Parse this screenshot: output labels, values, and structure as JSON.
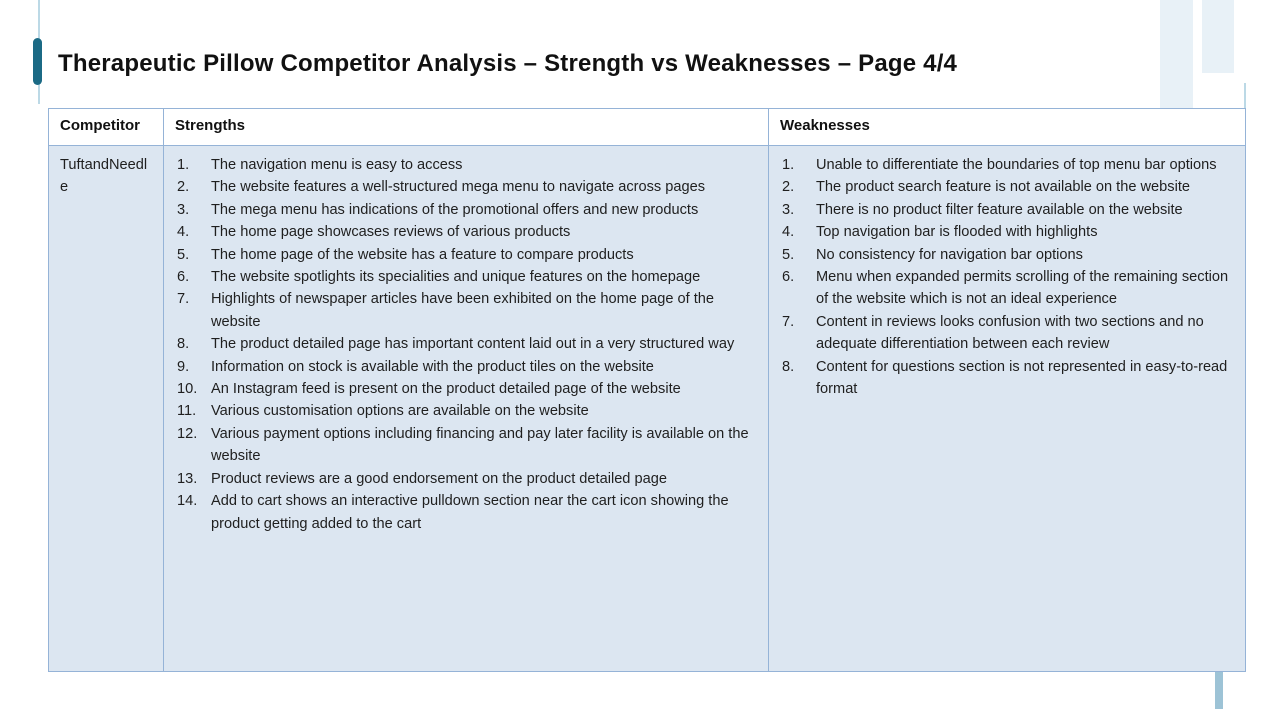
{
  "slide": {
    "title": "Therapeutic Pillow Competitor Analysis – Strength vs Weaknesses – Page 4/4"
  },
  "table": {
    "headers": {
      "competitor": "Competitor",
      "strengths": "Strengths",
      "weaknesses": "Weaknesses"
    },
    "row": {
      "competitor": "TuftandNeedle",
      "strengths": [
        "The navigation menu is easy to access",
        "The website features a well-structured mega menu to navigate across pages",
        "The mega menu has indications of the promotional offers and new products",
        "The home page showcases reviews of various products",
        "The home page of the website has a feature to compare products",
        "The website spotlights its specialities and unique features on the homepage",
        "Highlights of newspaper articles have been exhibited on the home page of the website",
        "The product detailed page has important content laid out in a very structured way",
        "Information on stock is available with the product tiles on the website",
        "An Instagram feed is present on the product detailed page of the website",
        "Various customisation options are available on the website",
        "Various payment options including financing and pay later facility is available on the website",
        "Product reviews are a good endorsement on the product detailed page",
        "Add to cart shows an interactive pulldown section near the cart icon showing the product getting added to the cart"
      ],
      "weaknesses": [
        "Unable to differentiate the boundaries of top menu bar options",
        "The product search feature is not available on the website",
        "There is no product filter feature available on the website",
        "Top navigation bar is flooded with highlights",
        "No consistency for navigation bar options",
        "Menu when expanded permits scrolling of the remaining section of the website which is not an ideal experience",
        "Content in reviews looks confusion with two sections and no adequate differentiation between each review",
        "Content for questions section is not represented in easy-to-read format"
      ]
    }
  },
  "colors": {
    "accent_teal": "#1b6a85",
    "accent_light_line": "#bcd9e6",
    "table_border": "#95b3d7",
    "cell_background": "#dce6f1",
    "deco_rect": "#e8f1f7",
    "bottom_bar": "#9dc3d6"
  }
}
